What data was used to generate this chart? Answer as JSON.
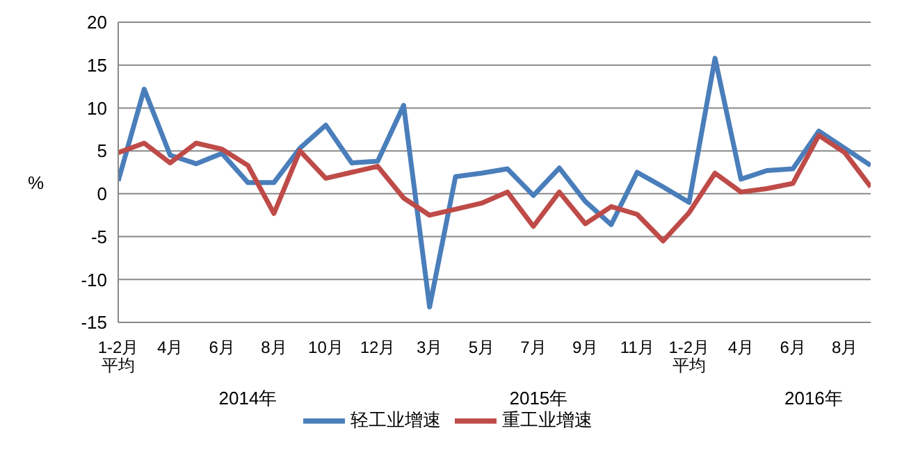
{
  "chart_data": {
    "type": "line",
    "ylabel": "%",
    "categories": [
      "1-2月平均",
      null,
      "4月",
      null,
      "6月",
      null,
      "8月",
      null,
      "10月",
      null,
      "12月",
      null,
      "3月",
      null,
      "5月",
      null,
      "7月",
      null,
      "9月",
      null,
      "11月",
      null,
      "1-2月平均",
      null,
      "4月",
      null,
      "6月",
      null,
      "8月",
      null
    ],
    "series": [
      {
        "name": "轻工业增速",
        "color": "#4a7ebb",
        "values": [
          1.5,
          12.2,
          4.5,
          3.5,
          4.7,
          1.3,
          1.3,
          5.3,
          8.0,
          3.6,
          3.8,
          10.3,
          -13.2,
          2.0,
          2.4,
          2.9,
          -0.2,
          3.0,
          -0.9,
          -3.6,
          2.5,
          0.8,
          -1.0,
          15.8,
          1.7,
          2.7,
          2.9,
          7.3,
          5.3,
          3.3
        ]
      },
      {
        "name": "重工业增速",
        "color": "#be4b48",
        "values": [
          4.8,
          5.9,
          3.6,
          5.9,
          5.2,
          3.3,
          -2.3,
          5.0,
          1.8,
          2.5,
          3.2,
          -0.5,
          -2.5,
          -1.8,
          -1.1,
          0.2,
          -3.8,
          0.2,
          -3.5,
          -1.5,
          -2.4,
          -5.5,
          -2.2,
          2.4,
          0.2,
          0.6,
          1.2,
          6.8,
          4.8,
          0.8
        ]
      }
    ],
    "ylim": [
      -15,
      20
    ],
    "yticks": [
      -15,
      -10,
      -5,
      0,
      5,
      10,
      15,
      20
    ],
    "grid": "y",
    "legend": "bottom",
    "marker": "none",
    "line_style": "solid",
    "annotations": [
      "2014年",
      "2015年",
      "2016年"
    ]
  }
}
